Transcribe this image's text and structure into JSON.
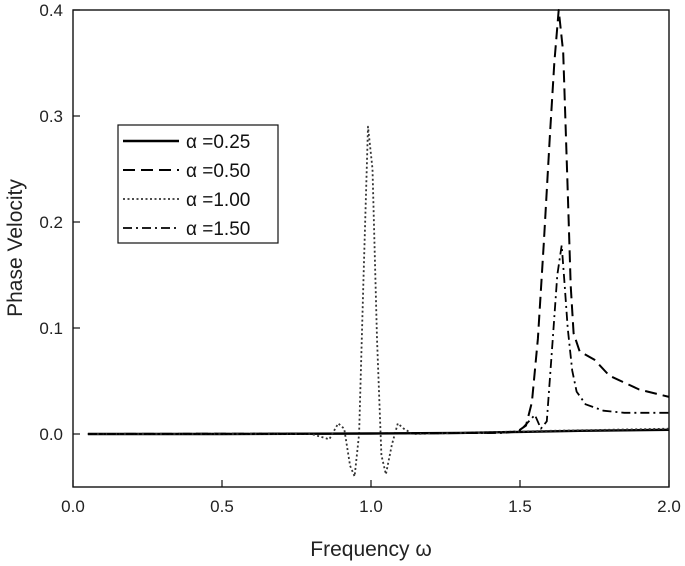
{
  "chart_data": {
    "type": "line",
    "title": "",
    "xlabel": "Frequency ω",
    "ylabel": "Phase Velocity",
    "xlim": [
      0.0,
      2.0
    ],
    "ylim": [
      -0.05,
      0.4
    ],
    "xticks": [
      0.0,
      0.5,
      1.0,
      1.5,
      2.0
    ],
    "xtick_labels": [
      "0.0",
      "0.5",
      "1.0",
      "1.5",
      "2.0"
    ],
    "yticks": [
      0.0,
      0.1,
      0.2,
      0.3,
      0.4
    ],
    "ytick_labels": [
      "0.0",
      "0.1",
      "0.2",
      "0.3",
      "0.4"
    ],
    "grid": false,
    "legend_position": "upper-left",
    "series": [
      {
        "name": "α =0.25",
        "style": "solid",
        "color": "#000000",
        "x": [
          0.05,
          0.5,
          1.0,
          1.3,
          1.5,
          1.7,
          2.0
        ],
        "y": [
          0.0,
          0.0,
          0.0005,
          0.001,
          0.002,
          0.003,
          0.004
        ]
      },
      {
        "name": "α =0.50",
        "style": "dashed",
        "color": "#000000",
        "x": [
          0.05,
          1.0,
          1.4,
          1.49,
          1.52,
          1.54,
          1.56,
          1.58,
          1.6,
          1.615,
          1.63,
          1.645,
          1.66,
          1.67,
          1.68,
          1.7,
          1.75,
          1.8,
          1.9,
          2.0
        ],
        "y": [
          0.0,
          0.0005,
          0.001,
          0.002,
          0.008,
          0.03,
          0.09,
          0.18,
          0.28,
          0.35,
          0.4,
          0.36,
          0.23,
          0.14,
          0.095,
          0.078,
          0.07,
          0.055,
          0.042,
          0.035
        ]
      },
      {
        "name": "α =1.00",
        "style": "dotted",
        "color": "#333333",
        "x": [
          0.05,
          0.8,
          0.86,
          0.89,
          0.91,
          0.93,
          0.945,
          0.96,
          0.975,
          0.99,
          1.005,
          1.02,
          1.035,
          1.05,
          1.07,
          1.09,
          1.11,
          1.14,
          1.3,
          1.6,
          2.0
        ],
        "y": [
          0.0,
          0.0,
          -0.005,
          0.01,
          0.005,
          -0.03,
          -0.04,
          0.0,
          0.15,
          0.29,
          0.25,
          0.09,
          -0.02,
          -0.038,
          -0.01,
          0.01,
          0.005,
          0.0,
          0.001,
          0.003,
          0.005
        ]
      },
      {
        "name": "α =1.50",
        "style": "dash-dot",
        "color": "#000000",
        "x": [
          0.05,
          1.0,
          1.45,
          1.5,
          1.53,
          1.55,
          1.57,
          1.59,
          1.61,
          1.625,
          1.64,
          1.65,
          1.66,
          1.675,
          1.69,
          1.72,
          1.78,
          1.85,
          2.0
        ],
        "y": [
          0.0,
          0.0005,
          0.001,
          0.003,
          0.012,
          0.018,
          0.005,
          0.012,
          0.09,
          0.15,
          0.178,
          0.14,
          0.1,
          0.06,
          0.04,
          0.028,
          0.022,
          0.02,
          0.02
        ]
      }
    ]
  }
}
